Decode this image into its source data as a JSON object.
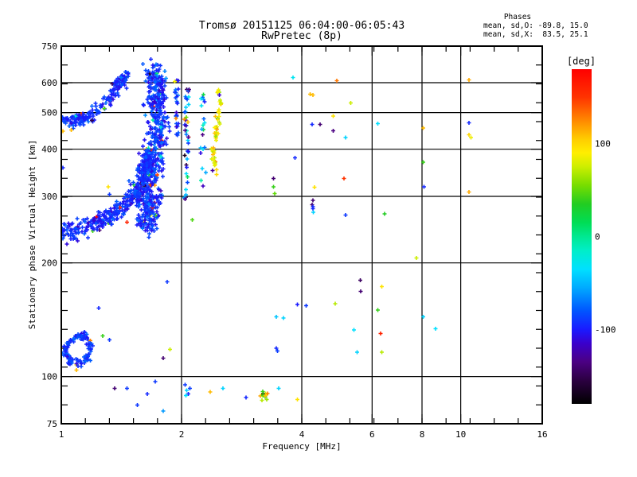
{
  "page": {
    "background": "#ffffff"
  },
  "header": {
    "title": "Tromsø 20151125 06:04:00-06:05:43",
    "subtitle": "RwPretec (8p)"
  },
  "stats": {
    "heading": "Phases",
    "line_o": "mean, sd,O: -89.8, 15.0",
    "line_x": "mean, sd,X:  83.5, 25.1"
  },
  "chart_data": {
    "type": "scatter",
    "title": "Tromsø 20151125 06:04:00-06:05:43",
    "subtitle": "RwPretec (8p)",
    "xlabel": "Frequency [MHz]",
    "ylabel": "Stationary phase Virtual Height [km]",
    "x_scale": "log",
    "y_scale": "log",
    "xlim": [
      1,
      16
    ],
    "ylim": [
      75,
      750
    ],
    "x_tick_labels": [
      1,
      2,
      4,
      6,
      8,
      10,
      16
    ],
    "y_tick_labels": [
      75,
      100,
      200,
      300,
      400,
      500,
      600,
      750
    ],
    "x_gridlines": [
      2,
      4,
      6,
      8,
      10
    ],
    "y_gridlines": [
      100,
      200,
      300,
      400,
      500,
      600
    ],
    "x_minor_ratio": 1.1487,
    "y_minor_ratio": 1.12202,
    "grid": true,
    "marker": "plus",
    "marker_size": 5,
    "frame_color": "#000000",
    "colorbar": {
      "label": "[deg]",
      "min": -180,
      "max": 180,
      "ticks": [
        100,
        0,
        -100
      ],
      "stops": [
        [
          -180,
          "#000000"
        ],
        [
          -155,
          "#2b0040"
        ],
        [
          -135,
          "#4b0082"
        ],
        [
          -115,
          "#3a00cc"
        ],
        [
          -100,
          "#1a1aff"
        ],
        [
          -80,
          "#0055ff"
        ],
        [
          -55,
          "#00aaff"
        ],
        [
          -35,
          "#00e0ff"
        ],
        [
          -15,
          "#00eec8"
        ],
        [
          0,
          "#00e891"
        ],
        [
          15,
          "#00dd55"
        ],
        [
          35,
          "#22cc22"
        ],
        [
          55,
          "#77dd00"
        ],
        [
          75,
          "#ccee00"
        ],
        [
          90,
          "#ffee00"
        ],
        [
          105,
          "#ffcc00"
        ],
        [
          125,
          "#ff8800"
        ],
        [
          150,
          "#ff3300"
        ],
        [
          180,
          "#ff0000"
        ]
      ]
    },
    "clusters": [
      {
        "name": "o-trace-lower",
        "path": [
          [
            1.0,
            237
          ],
          [
            1.12,
            247
          ],
          [
            1.25,
            258
          ],
          [
            1.38,
            272
          ],
          [
            1.5,
            296
          ],
          [
            1.58,
            318
          ],
          [
            1.63,
            350
          ],
          [
            1.66,
            395
          ]
        ],
        "n": 360,
        "jf": 0.018,
        "jh": 0.05,
        "phase": -95,
        "sd": 16,
        "wild": 0.04
      },
      {
        "name": "o-trace-asymptote-column",
        "path": [
          [
            1.7,
            645
          ],
          [
            1.74,
            565
          ],
          [
            1.75,
            480
          ],
          [
            1.73,
            410
          ],
          [
            1.7,
            340
          ],
          [
            1.67,
            280
          ],
          [
            1.65,
            248
          ]
        ],
        "n": 520,
        "jf": 0.055,
        "jh": 0.055,
        "phase": -92,
        "sd": 20,
        "wild": 0.07
      },
      {
        "name": "wedge-fill",
        "path": [
          [
            1.54,
            300
          ],
          [
            1.6,
            335
          ],
          [
            1.65,
            385
          ]
        ],
        "n": 70,
        "jf": 0.05,
        "jh": 0.1,
        "phase": -93,
        "sd": 15,
        "wild": 0.04
      },
      {
        "name": "upper-left-band",
        "path": [
          [
            1.005,
            480
          ],
          [
            1.07,
            483
          ],
          [
            1.14,
            489
          ]
        ],
        "n": 48,
        "jf": 0.018,
        "jh": 0.018,
        "phase": -95,
        "sd": 13,
        "wild": 0.02
      },
      {
        "name": "rising-trace",
        "path": [
          [
            1.07,
            468
          ],
          [
            1.16,
            487
          ],
          [
            1.25,
            516
          ],
          [
            1.33,
            552
          ],
          [
            1.41,
            597
          ],
          [
            1.46,
            633
          ]
        ],
        "n": 150,
        "jf": 0.025,
        "jh": 0.035,
        "phase": -93,
        "sd": 16,
        "wild": 0.05
      },
      {
        "name": "x-trace-yellow",
        "path": [
          [
            2.42,
            352
          ],
          [
            2.4,
            392
          ],
          [
            2.44,
            437
          ],
          [
            2.47,
            487
          ],
          [
            2.5,
            537
          ],
          [
            2.48,
            580
          ]
        ],
        "n": 55,
        "jf": 0.012,
        "jh": 0.022,
        "phase": 88,
        "sd": 25,
        "wild": 0.08
      },
      {
        "name": "post-2mhz-column",
        "path": [
          [
            2.06,
            580
          ],
          [
            2.05,
            480
          ],
          [
            2.06,
            385
          ],
          [
            2.05,
            300
          ]
        ],
        "n": 42,
        "jf": 0.013,
        "jh": 0.05,
        "phase": -80,
        "sd": 70,
        "wild": 0.25
      },
      {
        "name": "pre-2mhz-column",
        "path": [
          [
            1.94,
            630
          ],
          [
            1.95,
            520
          ],
          [
            1.94,
            430
          ]
        ],
        "n": 26,
        "jf": 0.01,
        "jh": 0.06,
        "phase": -90,
        "sd": 30,
        "wild": 0.12
      },
      {
        "name": "trail-2p25",
        "path": [
          [
            2.25,
            565
          ],
          [
            2.27,
            470
          ],
          [
            2.25,
            380
          ],
          [
            2.28,
            310
          ]
        ],
        "n": 20,
        "jf": 0.015,
        "jh": 0.06,
        "phase": -70,
        "sd": 80,
        "wild": 0.2
      },
      {
        "name": "e-region-ring",
        "path": [
          [
            1.015,
            116
          ],
          [
            1.05,
            124
          ],
          [
            1.1,
            129
          ],
          [
            1.15,
            127
          ],
          [
            1.185,
            120
          ],
          [
            1.165,
            112
          ],
          [
            1.115,
            109
          ],
          [
            1.055,
            110
          ],
          [
            1.015,
            116
          ]
        ],
        "n": 115,
        "jf": 0.012,
        "jh": 0.02,
        "phase": -90,
        "sd": 14,
        "wild": 0.03
      },
      {
        "name": "bottom-yellow-cluster",
        "path": [
          [
            3.13,
            91
          ],
          [
            3.2,
            90
          ],
          [
            3.28,
            88
          ]
        ],
        "n": 13,
        "jf": 0.012,
        "jh": 0.025,
        "phase": 85,
        "sd": 45,
        "wild": 0.15
      }
    ],
    "outliers": [
      [
        3.8,
        620,
        -30
      ],
      [
        4.2,
        560,
        110
      ],
      [
        4.25,
        465,
        -95
      ],
      [
        4.45,
        465,
        -140
      ],
      [
        3.85,
        380,
        -95
      ],
      [
        3.4,
        335,
        -140
      ],
      [
        3.4,
        318,
        40
      ],
      [
        3.42,
        305,
        50
      ],
      [
        2.13,
        260,
        45
      ],
      [
        4.25,
        285,
        -140
      ],
      [
        4.27,
        278,
        -95
      ],
      [
        4.3,
        317,
        95
      ],
      [
        4.9,
        608,
        130
      ],
      [
        10.5,
        610,
        115
      ],
      [
        4.27,
        556,
        110
      ],
      [
        5.3,
        530,
        75
      ],
      [
        4.8,
        490,
        95
      ],
      [
        4.8,
        448,
        -135
      ],
      [
        5.15,
        430,
        -40
      ],
      [
        6.2,
        467,
        -35
      ],
      [
        8.05,
        455,
        110
      ],
      [
        10.5,
        470,
        -95
      ],
      [
        10.5,
        437,
        100
      ],
      [
        10.6,
        430,
        85
      ],
      [
        8.05,
        370,
        40
      ],
      [
        5.1,
        335,
        150
      ],
      [
        8.1,
        318,
        -95
      ],
      [
        10.5,
        308,
        115
      ],
      [
        4.27,
        293,
        -140
      ],
      [
        4.27,
        282,
        -95
      ],
      [
        4.28,
        272,
        -40
      ],
      [
        5.15,
        268,
        -90
      ],
      [
        6.45,
        270,
        35
      ],
      [
        7.75,
        206,
        75
      ],
      [
        5.6,
        180,
        -145
      ],
      [
        5.62,
        168,
        -140
      ],
      [
        6.35,
        173,
        95
      ],
      [
        3.9,
        155,
        -100
      ],
      [
        4.1,
        154,
        -90
      ],
      [
        4.85,
        156,
        70
      ],
      [
        3.45,
        144,
        -45
      ],
      [
        3.6,
        143,
        -40
      ],
      [
        6.2,
        150,
        40
      ],
      [
        5.4,
        133,
        -35
      ],
      [
        6.3,
        130,
        160
      ],
      [
        8.05,
        144,
        -40
      ],
      [
        8.65,
        134,
        -35
      ],
      [
        3.45,
        119,
        -95
      ],
      [
        3.48,
        117,
        -88
      ],
      [
        5.5,
        116,
        -40
      ],
      [
        6.35,
        116,
        70
      ],
      [
        3.5,
        93,
        -40
      ],
      [
        3.9,
        87,
        95
      ],
      [
        1.27,
        128,
        40
      ],
      [
        1.32,
        125,
        -90
      ],
      [
        1.09,
        104,
        110
      ],
      [
        1.87,
        118,
        75
      ],
      [
        1.8,
        112,
        -140
      ],
      [
        1.36,
        93,
        -140
      ],
      [
        1.46,
        93,
        -90
      ],
      [
        1.64,
        90,
        -95
      ],
      [
        1.72,
        97,
        -90
      ],
      [
        2.04,
        95,
        -90
      ],
      [
        2.06,
        92,
        -40
      ],
      [
        2.08,
        90,
        -95
      ],
      [
        2.1,
        93,
        -88
      ],
      [
        2.05,
        89,
        -35
      ],
      [
        2.36,
        91,
        110
      ],
      [
        2.54,
        93,
        -40
      ],
      [
        2.9,
        88,
        -95
      ],
      [
        1.8,
        81,
        -60
      ],
      [
        1.55,
        84,
        -90
      ],
      [
        1.01,
        447,
        110
      ],
      [
        1.06,
        450,
        110
      ],
      [
        1.01,
        357,
        -95
      ],
      [
        1.46,
        256,
        160
      ],
      [
        1.24,
        152,
        -95
      ],
      [
        1.84,
        178,
        -90
      ],
      [
        1.31,
        318,
        95
      ],
      [
        1.32,
        304,
        -90
      ]
    ]
  }
}
